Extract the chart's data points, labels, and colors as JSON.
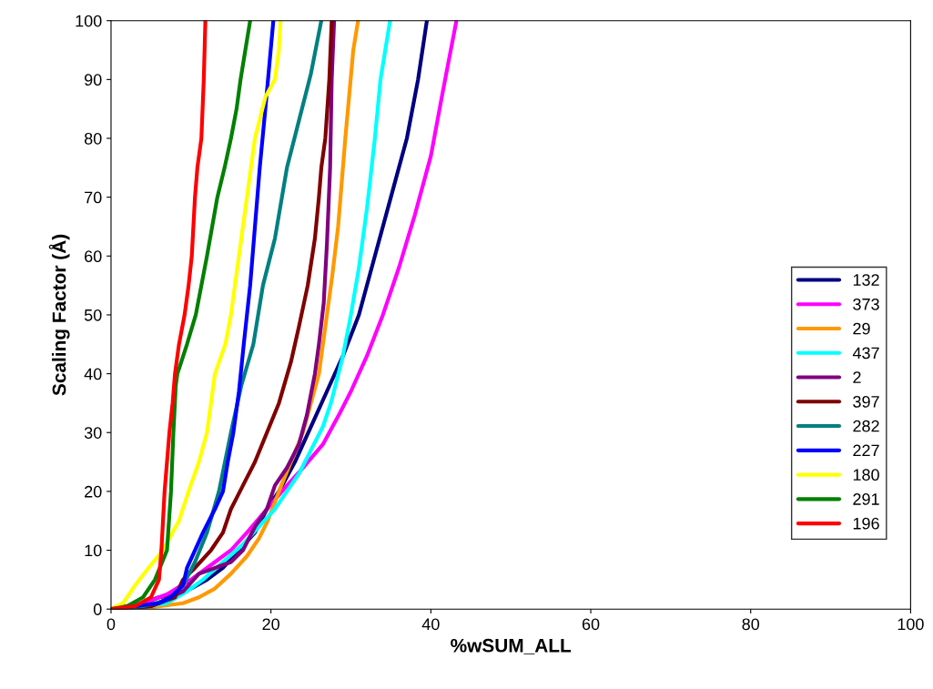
{
  "chart_data": {
    "type": "line",
    "xlabel": "%wSUM_ALL",
    "ylabel": "Scaling Factor (Å)",
    "xlim": [
      0,
      100
    ],
    "xticks": [
      0,
      20,
      40,
      60,
      80,
      100
    ],
    "ylim": [
      0,
      100
    ],
    "yticks": [
      0,
      10,
      20,
      30,
      40,
      50,
      60,
      70,
      80,
      90,
      100
    ],
    "grid": false,
    "legend": "right",
    "marker": "none",
    "line_style": "solid",
    "series": [
      {
        "name": "132",
        "color": "#000080",
        "x": [
          0,
          4,
          6,
          8,
          10,
          12,
          14,
          16,
          18,
          19.5,
          21,
          23,
          25,
          27,
          29,
          31,
          33,
          35,
          37,
          38.4,
          39.5
        ],
        "values": [
          0,
          1,
          2,
          2.5,
          3.5,
          5,
          7,
          10,
          13,
          17,
          20,
          25,
          31,
          37,
          43,
          50,
          60,
          70,
          80,
          90,
          100
        ]
      },
      {
        "name": "373",
        "color": "#ff00ff",
        "x": [
          0,
          4,
          7,
          10,
          13,
          15,
          17,
          19.5,
          22,
          24,
          26.5,
          28.5,
          30,
          32,
          34,
          36,
          38,
          40,
          41.5,
          43.2
        ],
        "values": [
          0,
          1,
          2.5,
          5,
          8,
          10,
          13,
          17,
          21,
          24,
          28,
          33,
          37,
          43,
          50,
          58,
          67,
          77,
          88,
          100
        ]
      },
      {
        "name": "29",
        "color": "#ff9900",
        "x": [
          0,
          5,
          9,
          11,
          13,
          15,
          17,
          18.5,
          19.6,
          21,
          22.5,
          24,
          25.2,
          26,
          27,
          27.7,
          28.4,
          29.3,
          30.3,
          30.9
        ],
        "values": [
          0,
          0.3,
          1,
          2,
          3.5,
          6,
          9,
          12,
          15,
          20,
          25,
          30,
          36,
          40,
          50,
          57,
          65,
          80,
          95,
          100
        ]
      },
      {
        "name": "437",
        "color": "#00ffff",
        "x": [
          0,
          4,
          7,
          9.5,
          11.5,
          14,
          16.5,
          18.5,
          20.5,
          22,
          23.5,
          25,
          26.5,
          27.5,
          29,
          30,
          31,
          32,
          33,
          33.7,
          34.9
        ],
        "values": [
          0,
          0.3,
          1,
          3,
          5,
          8,
          11,
          14,
          17,
          20,
          23,
          27,
          31,
          35,
          43,
          50,
          58,
          68,
          80,
          90,
          100
        ]
      },
      {
        "name": "2",
        "color": "#800080",
        "x": [
          0,
          5,
          9,
          11,
          13,
          15,
          16.5,
          18,
          19.5,
          20.5,
          22,
          23.5,
          24.5,
          25.5,
          26,
          26.6,
          27,
          27.4,
          27.6,
          27.9
        ],
        "values": [
          0,
          0.5,
          3,
          6,
          7,
          8,
          10,
          14,
          17,
          21,
          24,
          28,
          33,
          40,
          45,
          52,
          62,
          75,
          90,
          100
        ]
      },
      {
        "name": "397",
        "color": "#800000",
        "x": [
          0,
          5,
          8,
          9,
          10.5,
          12.5,
          14,
          15,
          16.5,
          18,
          19.5,
          21,
          22.5,
          23.5,
          24.6,
          25.5,
          26,
          26.3,
          26.8,
          27.3,
          27.6
        ],
        "values": [
          0,
          0.5,
          2,
          5,
          7,
          10,
          13,
          17,
          21,
          25,
          30,
          35,
          42,
          48,
          55,
          63,
          70,
          75,
          80,
          90,
          100
        ]
      },
      {
        "name": "282",
        "color": "#008080",
        "x": [
          0,
          4,
          7,
          9,
          10.5,
          12,
          13.5,
          15,
          16.3,
          17.8,
          19,
          20.5,
          22,
          23.5,
          25,
          26.3
        ],
        "values": [
          0,
          0.5,
          1.5,
          4,
          8,
          13,
          20,
          30,
          38,
          45,
          55,
          63,
          75,
          83,
          91,
          100
        ]
      },
      {
        "name": "227",
        "color": "#0000ff",
        "x": [
          0,
          3,
          6,
          7.5,
          9,
          9.5,
          10.5,
          11.5,
          13,
          14,
          14.6,
          15.3,
          16,
          16.6,
          17.4,
          18,
          18.6,
          19.3,
          20.3
        ],
        "values": [
          0,
          0.5,
          1,
          2,
          4,
          7,
          10,
          13,
          17,
          20,
          25,
          30,
          37,
          45,
          55,
          65,
          75,
          85,
          100
        ]
      },
      {
        "name": "180",
        "color": "#ffff00",
        "x": [
          0,
          1.5,
          3,
          4.7,
          6.5,
          8.5,
          9.7,
          11,
          12,
          12.5,
          13,
          14.3,
          15,
          16,
          17,
          18,
          19.3,
          20.5,
          21,
          21.2
        ],
        "values": [
          0,
          1,
          4,
          7,
          10,
          15,
          20,
          25,
          30,
          35,
          40,
          45,
          50,
          60,
          70,
          80,
          87,
          90,
          95,
          100
        ]
      },
      {
        "name": "291",
        "color": "#008000",
        "x": [
          0,
          2,
          4,
          5.5,
          7,
          7.5,
          7.8,
          8.1,
          8.3,
          9.5,
          10.6,
          12,
          13.3,
          14.2,
          15,
          15.7,
          16.2,
          17.4
        ],
        "values": [
          0,
          0.5,
          2,
          5,
          10,
          20,
          30,
          38,
          40,
          45,
          50,
          60,
          70,
          75,
          80,
          85,
          90,
          100
        ]
      },
      {
        "name": "196",
        "color": "#ff0000",
        "x": [
          0,
          3,
          5,
          6,
          6.3,
          6.5,
          6.7,
          7,
          7.3,
          7.7,
          8,
          8.5,
          9.2,
          9.7,
          10.1,
          10.5,
          10.8,
          11.3,
          11.6,
          11.8
        ],
        "values": [
          0,
          0.5,
          2,
          5,
          10,
          15,
          20,
          25,
          30,
          35,
          40,
          45,
          50,
          55,
          60,
          70,
          75,
          80,
          90,
          100
        ]
      }
    ]
  }
}
